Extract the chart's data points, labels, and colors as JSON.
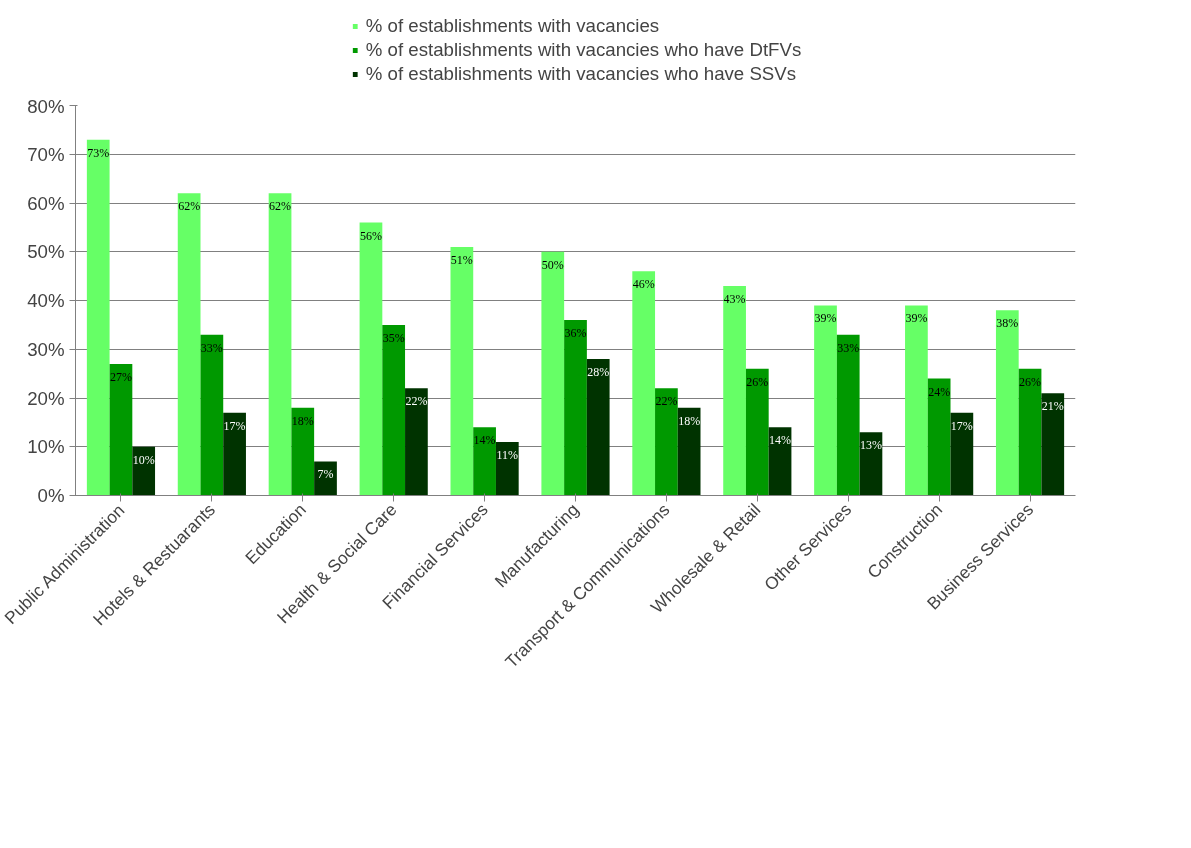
{
  "chart_data": {
    "type": "bar",
    "categories": [
      "Public Administration",
      "Hotels & Restuarants",
      "Education",
      "Health & Social Care",
      "Financial Services",
      "Manufacturing",
      "Transport & Communications",
      "Wholesale & Retail",
      "Other Services",
      "Construction",
      "Business Services"
    ],
    "series": [
      {
        "name": "% of establishments with vacancies",
        "color": "#66ff66",
        "values": [
          73,
          62,
          62,
          56,
          51,
          50,
          46,
          43,
          39,
          39,
          38
        ],
        "value_labels": [
          "73%",
          "62%",
          "62%",
          "56%",
          "51%",
          "50%",
          "46%",
          "43%",
          "39%",
          "39%",
          "38%"
        ]
      },
      {
        "name": "% of establishments with vacancies who have DtFVs",
        "color": "#009900",
        "values": [
          27,
          33,
          18,
          35,
          14,
          36,
          22,
          26,
          33,
          24,
          26
        ],
        "value_labels": [
          "27%",
          "33%",
          "18%",
          "35%",
          "14%",
          "36%",
          "22%",
          "26%",
          "33%",
          "24%",
          "26%"
        ]
      },
      {
        "name": "% of establishments with vacancies who have SSVs",
        "color": "#003300",
        "values": [
          10,
          17,
          7,
          22,
          11,
          28,
          18,
          14,
          13,
          17,
          21
        ],
        "value_labels": [
          "10%",
          "17%",
          "7%",
          "22%",
          "11%",
          "28%",
          "18%",
          "14%",
          "13%",
          "17%",
          "21%"
        ]
      }
    ],
    "ylim": [
      0,
      80
    ],
    "yticks": [
      {
        "value": 0,
        "label": "0%"
      },
      {
        "value": 10,
        "label": "10%"
      },
      {
        "value": 20,
        "label": "20%"
      },
      {
        "value": 30,
        "label": "30%"
      },
      {
        "value": 40,
        "label": "40%"
      },
      {
        "value": 50,
        "label": "50%"
      },
      {
        "value": 60,
        "label": "60%"
      },
      {
        "value": 70,
        "label": "70%"
      },
      {
        "value": 80,
        "label": "80%"
      }
    ],
    "grid": "y",
    "legend": "top"
  }
}
